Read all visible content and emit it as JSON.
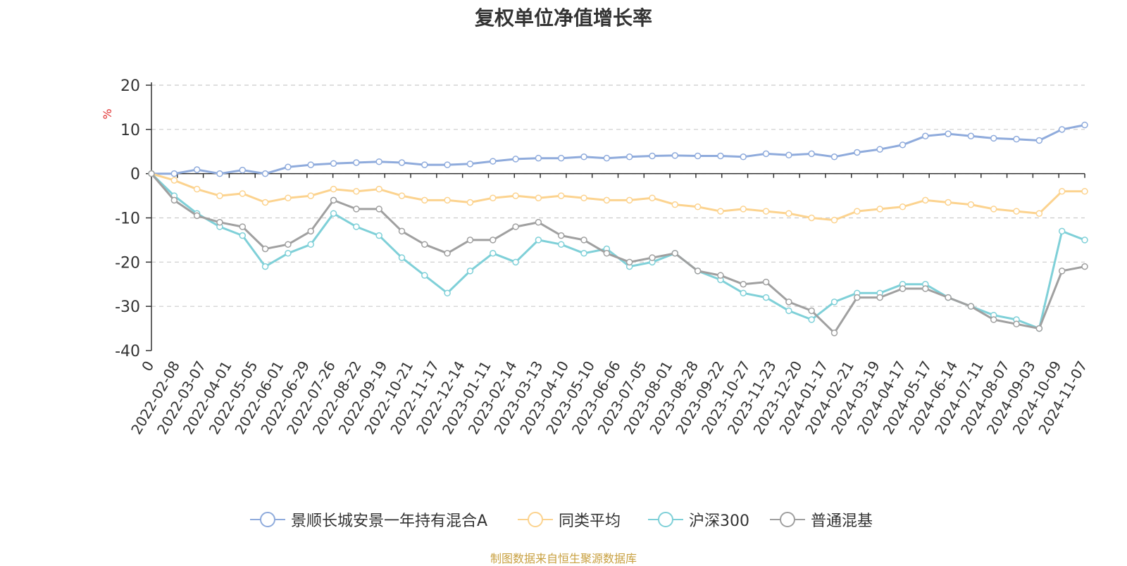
{
  "title": "复权单位净值增长率",
  "source": "制图数据来自恒生聚源数据库",
  "chart_data": {
    "type": "line",
    "title": "复权单位净值增长率",
    "ylabel": "%",
    "ylim": [
      -40,
      20
    ],
    "yticks": [
      20,
      10,
      0,
      -10,
      -20,
      -30,
      -40
    ],
    "grid": true,
    "legend_position": "bottom",
    "x_ticks": [
      "0",
      "2022-02-08",
      "2022-03-07",
      "2022-04-01",
      "2022-05-05",
      "2022-06-01",
      "2022-06-29",
      "2022-07-26",
      "2022-08-22",
      "2022-09-19",
      "2022-10-21",
      "2022-11-17",
      "2022-12-14",
      "2023-01-11",
      "2023-02-14",
      "2023-03-13",
      "2023-04-10",
      "2023-05-10",
      "2023-06-06",
      "2023-07-05",
      "2023-08-01",
      "2023-08-28",
      "2023-09-22",
      "2023-10-27",
      "2023-11-23",
      "2023-12-20",
      "2024-01-17",
      "2024-02-21",
      "2024-03-19",
      "2024-04-17",
      "2024-05-17",
      "2024-06-14",
      "2024-07-11",
      "2024-08-07",
      "2024-09-03",
      "2024-10-09",
      "2024-11-07"
    ],
    "series": [
      {
        "name": "景顺长城安景一年持有混合A",
        "color": "#8fabdc",
        "values": [
          0,
          0,
          0.9,
          0,
          0.8,
          0,
          1.5,
          2,
          2.3,
          2.5,
          2.7,
          2.5,
          2,
          2,
          2.2,
          2.8,
          3.3,
          3.5,
          3.5,
          3.8,
          3.5,
          3.8,
          4,
          4.1,
          4,
          4,
          3.8,
          4.5,
          4.2,
          4.5,
          3.8,
          4.8,
          5.5,
          6.5,
          8.5,
          9,
          8.5,
          8,
          7.8,
          7.5,
          10,
          11
        ]
      },
      {
        "name": "同类平均",
        "color": "#fcd38f",
        "values": [
          0,
          -1.5,
          -3.5,
          -5,
          -4.5,
          -6.5,
          -5.5,
          -5,
          -3.5,
          -4,
          -3.5,
          -5,
          -6,
          -6,
          -6.5,
          -5.5,
          -5,
          -5.5,
          -5,
          -5.5,
          -6,
          -6,
          -5.5,
          -7,
          -7.5,
          -8.5,
          -8,
          -8.5,
          -9,
          -10,
          -10.5,
          -8.5,
          -8,
          -7.5,
          -6,
          -6.5,
          -7,
          -8,
          -8.5,
          -9,
          -4,
          -4
        ]
      },
      {
        "name": "沪深300",
        "color": "#7fd0d8",
        "values": [
          0,
          -5,
          -9,
          -12,
          -14,
          -21,
          -18,
          -16,
          -9,
          -12,
          -14,
          -19,
          -23,
          -27,
          -22,
          -18,
          -20,
          -15,
          -16,
          -18,
          -17,
          -21,
          -20,
          -18,
          -22,
          -24,
          -27,
          -28,
          -31,
          -33,
          -29,
          -27,
          -27,
          -25,
          -25,
          -28,
          -30,
          -32,
          -33,
          -35,
          -13,
          -15
        ]
      },
      {
        "name": "普通混基",
        "color": "#a0a0a0",
        "values": [
          0,
          -6,
          -9.5,
          -11,
          -12,
          -17,
          -16,
          -13,
          -6,
          -8,
          -8,
          -13,
          -16,
          -18,
          -15,
          -15,
          -12,
          -11,
          -14,
          -15,
          -18,
          -20,
          -19,
          -18,
          -22,
          -23,
          -25,
          -24.5,
          -29,
          -31,
          -36,
          -28,
          -28,
          -26,
          -26,
          -28,
          -30,
          -33,
          -34,
          -35,
          -22,
          -21
        ]
      }
    ]
  }
}
